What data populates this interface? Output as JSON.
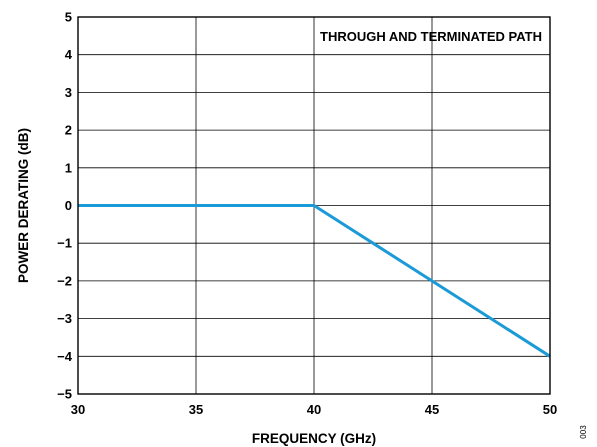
{
  "chart_data": {
    "type": "line",
    "xlabel": "FREQUENCY (GHz)",
    "ylabel": "POWER DERATING (dB)",
    "annotation": "THROUGH AND TERMINATED PATH",
    "figure_id": "003",
    "xlim": [
      30,
      50
    ],
    "ylim": [
      -5,
      5
    ],
    "x_ticks": [
      30,
      35,
      40,
      45,
      50
    ],
    "y_ticks": [
      5,
      4,
      3,
      2,
      1,
      0,
      -1,
      -2,
      -3,
      -4,
      -5
    ],
    "y_tick_labels": [
      "5",
      "4",
      "3",
      "2",
      "1",
      "0",
      "−1",
      "−2",
      "−3",
      "−4",
      "−5"
    ],
    "grid": true,
    "series": [
      {
        "color": "#1a9ad6",
        "x": [
          30,
          40,
          50
        ],
        "y": [
          0,
          0,
          -4
        ]
      }
    ]
  }
}
